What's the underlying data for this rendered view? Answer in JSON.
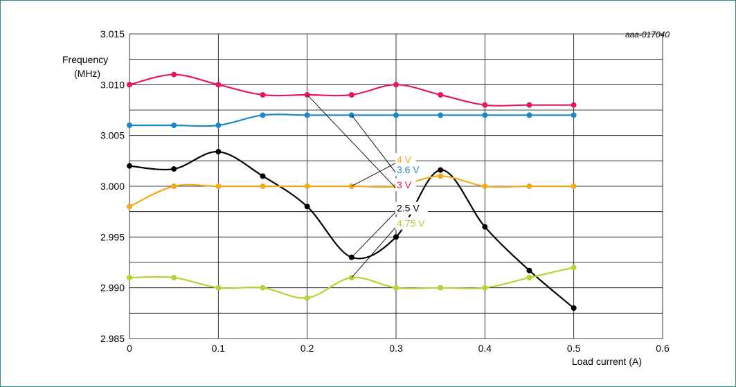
{
  "figure_id": "aaa-017040",
  "chart_data": {
    "type": "line",
    "title": "",
    "xlabel": "Load current (A)",
    "ylabel_lines": [
      "Frequency",
      "(MHz)"
    ],
    "xlim": [
      0,
      0.6
    ],
    "ylim": [
      2.985,
      3.015
    ],
    "x_ticks": [
      "0",
      "0.1",
      "0.2",
      "0.3",
      "0.4",
      "0.5",
      "0.6"
    ],
    "y_ticks": [
      "3.015",
      "3.010",
      "3.005",
      "3.000",
      "2.995",
      "2.990",
      "2.985"
    ],
    "grid": true,
    "series": [
      {
        "name": "3 V",
        "color": "#e8175d",
        "x": [
          0,
          0.05,
          0.1,
          0.15,
          0.2,
          0.25,
          0.3,
          0.35,
          0.4,
          0.45,
          0.5
        ],
        "y": [
          3.01,
          3.011,
          3.01,
          3.009,
          3.009,
          3.009,
          3.01,
          3.009,
          3.008,
          3.008,
          3.008
        ]
      },
      {
        "name": "3.6 V",
        "color": "#1b87c9",
        "x": [
          0,
          0.05,
          0.1,
          0.15,
          0.2,
          0.25,
          0.3,
          0.35,
          0.4,
          0.45,
          0.5
        ],
        "y": [
          3.006,
          3.006,
          3.006,
          3.007,
          3.007,
          3.007,
          3.007,
          3.007,
          3.007,
          3.007,
          3.007
        ]
      },
      {
        "name": "2.5 V",
        "color": "#000000",
        "x": [
          0,
          0.05,
          0.1,
          0.15,
          0.2,
          0.25,
          0.3,
          0.35,
          0.4,
          0.45,
          0.5
        ],
        "y": [
          3.002,
          3.0017,
          3.0034,
          3.001,
          2.998,
          2.993,
          2.995,
          3.0016,
          2.996,
          2.9917,
          2.988
        ]
      },
      {
        "name": "4 V",
        "color": "#f5a81c",
        "x": [
          0,
          0.05,
          0.1,
          0.15,
          0.2,
          0.25,
          0.3,
          0.35,
          0.4,
          0.45,
          0.5
        ],
        "y": [
          2.998,
          3.0,
          3.0,
          3.0,
          3.0,
          3.0,
          3.0,
          3.001,
          3.0,
          3.0,
          3.0
        ]
      },
      {
        "name": "4.75 V",
        "color": "#b5d334",
        "x": [
          0,
          0.05,
          0.1,
          0.15,
          0.2,
          0.25,
          0.3,
          0.35,
          0.4,
          0.45,
          0.5
        ],
        "y": [
          2.991,
          2.991,
          2.99,
          2.99,
          2.989,
          2.991,
          2.99,
          2.99,
          2.99,
          2.991,
          2.992
        ]
      }
    ],
    "annotations": [
      {
        "series": "4 V",
        "text": "4 V",
        "color": "#f5a81c",
        "x": 0.3,
        "y": 3.0023,
        "pointer_to": [
          [
            0.25,
            3.0
          ]
        ]
      },
      {
        "series": "3.6 V",
        "text": "3.6 V",
        "color": "#1b87c9",
        "x": 0.3,
        "y": 3.0013,
        "pointer_to": [
          [
            0.25,
            3.007
          ]
        ]
      },
      {
        "series": "3 V",
        "text": "3 V",
        "color": "#e8175d",
        "x": 0.3,
        "y": 2.9998,
        "pointer_to": [
          [
            0.2,
            3.009
          ]
        ]
      },
      {
        "series": "2.5 V",
        "text": "2.5 V",
        "color": "#000000",
        "x": 0.3,
        "y": 2.9975,
        "pointer_to": [
          [
            0.25,
            2.993
          ],
          [
            0.3,
            2.995
          ]
        ]
      },
      {
        "series": "4.75 V",
        "text": "4.75 V",
        "color": "#b5d334",
        "x": 0.3,
        "y": 2.996,
        "pointer_to": [
          [
            0.25,
            2.991
          ]
        ]
      }
    ]
  }
}
